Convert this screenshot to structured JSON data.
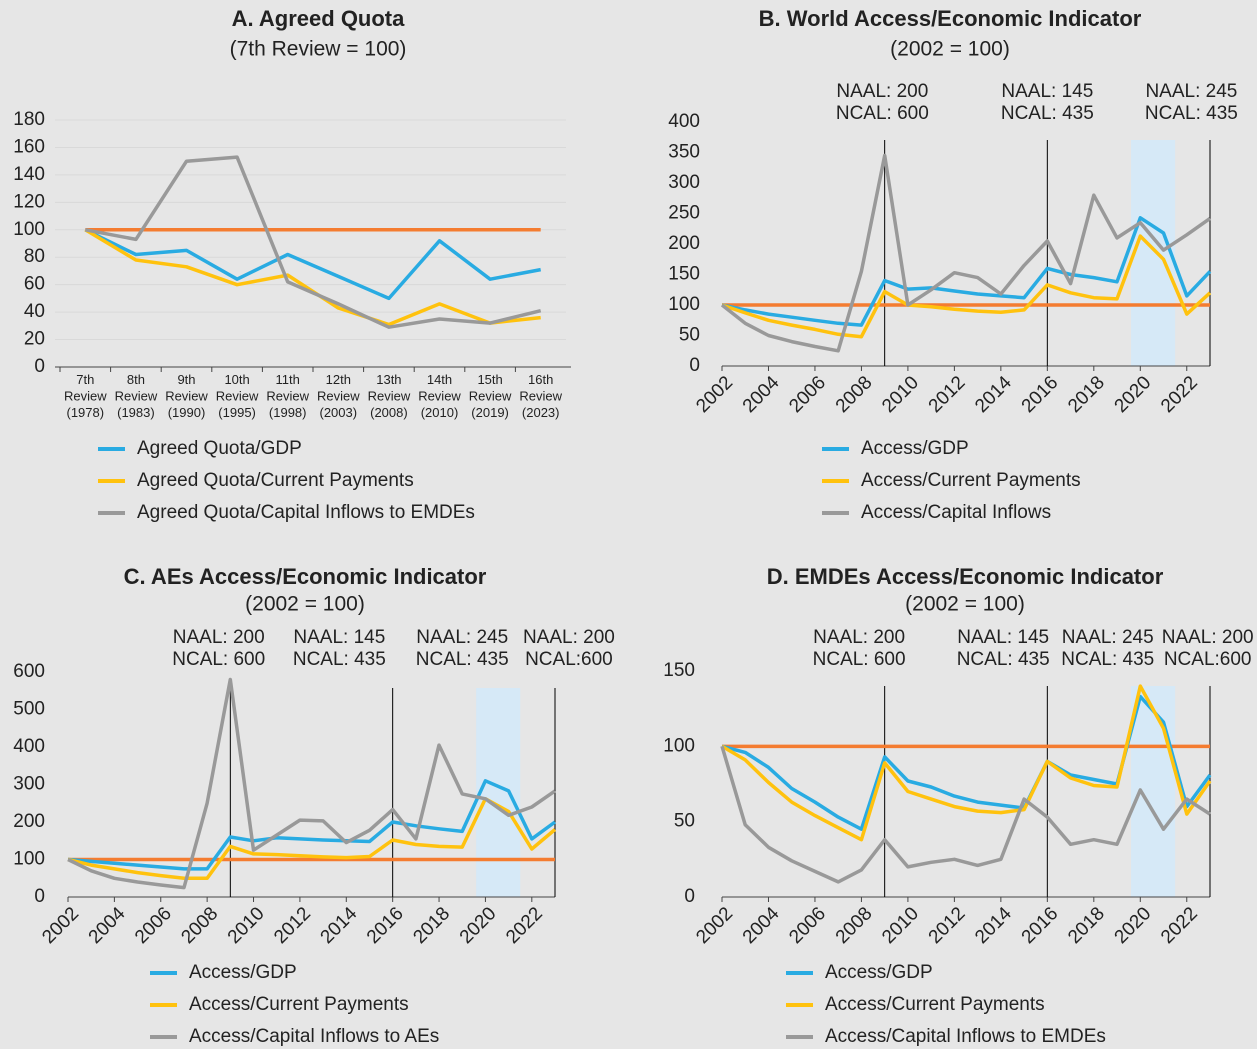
{
  "chart_data": [
    {
      "type": "line",
      "title": "A. Agreed Quota",
      "subtitle": "(7th Review = 100)",
      "categories": [
        "7th Review (1978)",
        "8th Review (1983)",
        "9th Review (1990)",
        "10th Review (1995)",
        "11th Review (1998)",
        "12th Review (2003)",
        "13th Review (2008)",
        "14th Review (2010)",
        "15th Review (2019)",
        "16th Review (2023)"
      ],
      "ylim": [
        0,
        180
      ],
      "yticks": [
        0,
        20,
        40,
        60,
        80,
        100,
        120,
        140,
        160,
        180
      ],
      "grid": true,
      "reference_line": {
        "value": 100,
        "color": "#f47c30"
      },
      "series": [
        {
          "name": "Agreed Quota/GDP",
          "color": "#29abe2",
          "values": [
            100,
            82,
            85,
            64,
            82,
            66,
            50,
            92,
            64,
            71
          ]
        },
        {
          "name": "Agreed Quota/Current Payments",
          "color": "#ffc20e",
          "values": [
            100,
            78,
            73,
            60,
            67,
            43,
            31,
            46,
            32,
            36
          ]
        },
        {
          "name": "Agreed Quota/Capital Inflows to EMDEs",
          "color": "#999999",
          "values": [
            100,
            93,
            150,
            153,
            62,
            46,
            29,
            35,
            32,
            41
          ]
        }
      ]
    },
    {
      "type": "line",
      "title": "B. World Access/Economic Indicator",
      "subtitle": "(2002 = 100)",
      "x": [
        2002,
        2003,
        2004,
        2005,
        2006,
        2007,
        2008,
        2009,
        2010,
        2011,
        2012,
        2013,
        2014,
        2015,
        2016,
        2017,
        2018,
        2019,
        2020,
        2021,
        2022,
        2023
      ],
      "xlim": [
        2002,
        2023
      ],
      "xticks": [
        2002,
        2004,
        2006,
        2008,
        2010,
        2012,
        2014,
        2016,
        2018,
        2020,
        2022
      ],
      "ylim": [
        0,
        400
      ],
      "yticks": [
        0,
        50,
        100,
        150,
        200,
        250,
        300,
        350,
        400
      ],
      "grid": false,
      "reference_line": {
        "value": 100,
        "color": "#f47c30"
      },
      "vlines": [
        2009,
        2016,
        2023
      ],
      "shade": [
        2019.6,
        2021.5
      ],
      "shade_color": "#d6e9f7",
      "annotations": [
        {
          "x": 2008.9,
          "text": [
            "NAAL: 200",
            "NCAL: 600"
          ]
        },
        {
          "x": 2016,
          "text": [
            "NAAL: 145",
            "NCAL: 435"
          ]
        },
        {
          "x": 2022.2,
          "text": [
            "NAAL: 245",
            "NCAL: 435"
          ]
        }
      ],
      "series": [
        {
          "name": "Access/GDP",
          "color": "#29abe2",
          "values": [
            100,
            92,
            85,
            80,
            75,
            70,
            67,
            140,
            126,
            128,
            123,
            118,
            115,
            112,
            160,
            150,
            145,
            138,
            243,
            218,
            115,
            155
          ]
        },
        {
          "name": "Access/Current Payments",
          "color": "#ffc20e",
          "values": [
            100,
            87,
            75,
            67,
            60,
            52,
            48,
            122,
            100,
            97,
            93,
            90,
            88,
            92,
            133,
            120,
            112,
            110,
            213,
            175,
            85,
            120
          ]
        },
        {
          "name": "Access/Capital Inflows",
          "color": "#999999",
          "values": [
            100,
            70,
            50,
            40,
            32,
            25,
            155,
            345,
            100,
            125,
            153,
            145,
            118,
            165,
            205,
            135,
            280,
            210,
            235,
            190,
            215,
            242
          ]
        }
      ]
    },
    {
      "type": "line",
      "title": "C. AEs Access/Economic Indicator",
      "subtitle": "(2002 = 100)",
      "x": [
        2002,
        2003,
        2004,
        2005,
        2006,
        2007,
        2008,
        2009,
        2010,
        2011,
        2012,
        2013,
        2014,
        2015,
        2016,
        2017,
        2018,
        2019,
        2020,
        2021,
        2022,
        2023
      ],
      "xlim": [
        2002,
        2023
      ],
      "xticks": [
        2002,
        2004,
        2006,
        2008,
        2010,
        2012,
        2014,
        2016,
        2018,
        2020,
        2022
      ],
      "ylim": [
        0,
        600
      ],
      "yticks": [
        0,
        100,
        200,
        300,
        400,
        500,
        600
      ],
      "grid": false,
      "reference_line": {
        "value": 100,
        "color": "#f47c30"
      },
      "vlines": [
        2009,
        2016,
        2023
      ],
      "shade": [
        2019.6,
        2021.5
      ],
      "shade_color": "#d6e9f7",
      "annotations": [
        {
          "x": 2008.5,
          "text": [
            "NAAL: 200",
            "NCAL: 600"
          ]
        },
        {
          "x": 2013.7,
          "text": [
            "NAAL: 145",
            "NCAL: 435"
          ]
        },
        {
          "x": 2019,
          "text": [
            "NAAL: 245",
            "NCAL: 435"
          ]
        },
        {
          "x": 2023.6,
          "text": [
            "NAAL: 200",
            "NCAL:600"
          ]
        }
      ],
      "series": [
        {
          "name": "Access/GDP",
          "color": "#29abe2",
          "values": [
            100,
            95,
            90,
            85,
            80,
            75,
            75,
            160,
            150,
            158,
            155,
            152,
            150,
            148,
            200,
            190,
            182,
            175,
            310,
            283,
            155,
            200
          ]
        },
        {
          "name": "Access/Current Payments",
          "color": "#ffc20e",
          "values": [
            100,
            85,
            75,
            65,
            57,
            50,
            50,
            135,
            115,
            113,
            110,
            107,
            105,
            108,
            152,
            140,
            135,
            133,
            262,
            228,
            128,
            180
          ]
        },
        {
          "name": "Access/Capital Inflows to AEs",
          "color": "#999999",
          "values": [
            100,
            70,
            50,
            40,
            32,
            25,
            250,
            580,
            125,
            165,
            205,
            203,
            145,
            178,
            233,
            155,
            405,
            275,
            262,
            218,
            240,
            283
          ]
        }
      ]
    },
    {
      "type": "line",
      "title": "D. EMDEs Access/Economic Indicator",
      "subtitle": "(2002 = 100)",
      "x": [
        2002,
        2003,
        2004,
        2005,
        2006,
        2007,
        2008,
        2009,
        2010,
        2011,
        2012,
        2013,
        2014,
        2015,
        2016,
        2017,
        2018,
        2019,
        2020,
        2021,
        2022,
        2023
      ],
      "xlim": [
        2002,
        2023
      ],
      "xticks": [
        2002,
        2004,
        2006,
        2008,
        2010,
        2012,
        2014,
        2016,
        2018,
        2020,
        2022
      ],
      "ylim": [
        0,
        150
      ],
      "yticks": [
        0,
        50,
        100,
        150
      ],
      "grid": false,
      "reference_line": {
        "value": 100,
        "color": "#f47c30"
      },
      "vlines": [
        2009,
        2016,
        2023
      ],
      "shade": [
        2019.6,
        2021.5
      ],
      "shade_color": "#d6e9f7",
      "annotations": [
        {
          "x": 2007.9,
          "text": [
            "NAAL: 200",
            "NCAL: 600"
          ]
        },
        {
          "x": 2014.1,
          "text": [
            "NAAL: 145",
            "NCAL: 435"
          ]
        },
        {
          "x": 2018.6,
          "text": [
            "NAAL: 245",
            "NCAL: 435"
          ]
        },
        {
          "x": 2022.9,
          "text": [
            "NAAL: 200",
            "NCAL:600"
          ]
        }
      ],
      "series": [
        {
          "name": "Access/GDP",
          "color": "#29abe2",
          "values": [
            100,
            96,
            86,
            72,
            63,
            53,
            45,
            93,
            77,
            73,
            67,
            63,
            61,
            59,
            90,
            81,
            78,
            75,
            133,
            116,
            60,
            81
          ]
        },
        {
          "name": "Access/Current Payments",
          "color": "#ffc20e",
          "values": [
            100,
            91,
            76,
            63,
            54,
            46,
            38,
            89,
            70,
            65,
            60,
            57,
            56,
            58,
            90,
            79,
            74,
            73,
            140,
            112,
            55,
            77
          ]
        },
        {
          "name": "Access/Capital Inflows to EMDEs",
          "color": "#999999",
          "values": [
            100,
            48,
            33,
            24,
            17,
            10,
            18,
            38,
            20,
            23,
            25,
            21,
            25,
            65,
            53,
            35,
            38,
            35,
            71,
            45,
            65,
            55
          ]
        }
      ]
    }
  ]
}
